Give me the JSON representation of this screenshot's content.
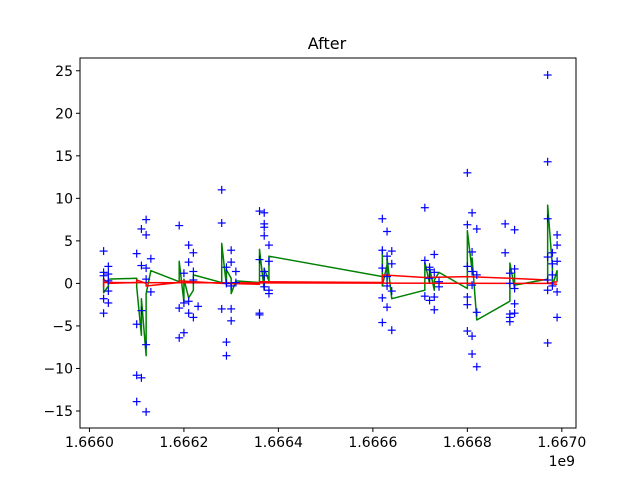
{
  "chart_data": {
    "type": "scatter",
    "title": "After",
    "xlabel": "",
    "ylabel": "",
    "x_offset_label": "1e9",
    "xlim": [
      1.66598,
      1.66703
    ],
    "ylim": [
      -17,
      26.5
    ],
    "xticks": [
      {
        "value": 1.666,
        "label": "1.6660"
      },
      {
        "value": 1.6662,
        "label": "1.6662"
      },
      {
        "value": 1.6664,
        "label": "1.6664"
      },
      {
        "value": 1.6666,
        "label": "1.6666"
      },
      {
        "value": 1.6668,
        "label": "1.6668"
      },
      {
        "value": 1.667,
        "label": "1.6670"
      }
    ],
    "yticks": [
      {
        "value": -15,
        "label": "−15"
      },
      {
        "value": -10,
        "label": "−10"
      },
      {
        "value": -5,
        "label": "−5"
      },
      {
        "value": 0,
        "label": "0"
      },
      {
        "value": 5,
        "label": "5"
      },
      {
        "value": 10,
        "label": "10"
      },
      {
        "value": 15,
        "label": "15"
      },
      {
        "value": 20,
        "label": "20"
      },
      {
        "value": 25,
        "label": "25"
      }
    ],
    "grid": false,
    "legend": "none",
    "series": [
      {
        "type": "scatter",
        "marker": "+",
        "color": "#0000ff",
        "points": [
          [
            1.66603,
            3.8
          ],
          [
            1.66603,
            1.3
          ],
          [
            1.66603,
            0.9
          ],
          [
            1.66603,
            -3.5
          ],
          [
            1.66603,
            -1.8
          ],
          [
            1.66604,
            2.0
          ],
          [
            1.66604,
            -2.3
          ],
          [
            1.66604,
            1.1
          ],
          [
            1.66604,
            0.3
          ],
          [
            1.66604,
            -0.9
          ],
          [
            1.6661,
            -10.8
          ],
          [
            1.6661,
            -13.9
          ],
          [
            1.6661,
            3.5
          ],
          [
            1.6661,
            -4.8
          ],
          [
            1.66611,
            6.4
          ],
          [
            1.66611,
            -11.1
          ],
          [
            1.66611,
            2.1
          ],
          [
            1.66611,
            -3.2
          ],
          [
            1.66612,
            7.5
          ],
          [
            1.66612,
            5.7
          ],
          [
            1.66612,
            -15.1
          ],
          [
            1.66612,
            1.8
          ],
          [
            1.66612,
            -7.2
          ],
          [
            1.66613,
            2.9
          ],
          [
            1.66613,
            -1.0
          ],
          [
            1.66612,
            0.5
          ],
          [
            1.66619,
            6.8
          ],
          [
            1.66619,
            -6.4
          ],
          [
            1.66619,
            -2.9
          ],
          [
            1.6662,
            -2.3
          ],
          [
            1.6662,
            1.2
          ],
          [
            1.6662,
            -5.8
          ],
          [
            1.66621,
            4.5
          ],
          [
            1.66621,
            -3.5
          ],
          [
            1.66621,
            2.5
          ],
          [
            1.66621,
            -2.1
          ],
          [
            1.66622,
            3.6
          ],
          [
            1.66622,
            -4.0
          ],
          [
            1.66622,
            0.4
          ],
          [
            1.66622,
            1.4
          ],
          [
            1.66623,
            -2.7
          ],
          [
            1.66628,
            11.0
          ],
          [
            1.66628,
            7.1
          ],
          [
            1.66628,
            -3.0
          ],
          [
            1.66629,
            -6.9
          ],
          [
            1.66629,
            -8.5
          ],
          [
            1.66629,
            1.9
          ],
          [
            1.66629,
            0.0
          ],
          [
            1.6663,
            3.9
          ],
          [
            1.6663,
            -4.4
          ],
          [
            1.6663,
            2.5
          ],
          [
            1.6663,
            -3.0
          ],
          [
            1.6663,
            -0.3
          ],
          [
            1.66631,
            1.4
          ],
          [
            1.66631,
            0.1
          ],
          [
            1.66636,
            8.5
          ],
          [
            1.66636,
            2.8
          ],
          [
            1.66636,
            -3.5
          ],
          [
            1.66636,
            -3.7
          ],
          [
            1.66637,
            8.3
          ],
          [
            1.66637,
            7.0
          ],
          [
            1.66637,
            5.6
          ],
          [
            1.66637,
            6.6
          ],
          [
            1.66637,
            1.4
          ],
          [
            1.66637,
            -0.4
          ],
          [
            1.66637,
            0.9
          ],
          [
            1.66638,
            4.5
          ],
          [
            1.66638,
            2.6
          ],
          [
            1.66638,
            -0.8
          ],
          [
            1.66638,
            -1.2
          ],
          [
            1.66662,
            7.6
          ],
          [
            1.66662,
            3.9
          ],
          [
            1.66662,
            -1.7
          ],
          [
            1.66662,
            -4.6
          ],
          [
            1.66662,
            1.8
          ],
          [
            1.66663,
            6.1
          ],
          [
            1.66663,
            3.2
          ],
          [
            1.66663,
            -0.3
          ],
          [
            1.66663,
            -2.8
          ],
          [
            1.66663,
            0.8
          ],
          [
            1.66664,
            2.3
          ],
          [
            1.66664,
            -5.5
          ],
          [
            1.66664,
            3.8
          ],
          [
            1.66664,
            -0.9
          ],
          [
            1.66671,
            8.9
          ],
          [
            1.66671,
            2.7
          ],
          [
            1.66671,
            -1.5
          ],
          [
            1.66672,
            1.6
          ],
          [
            1.66672,
            -2.0
          ],
          [
            1.66672,
            1.9
          ],
          [
            1.66672,
            0.6
          ],
          [
            1.66673,
            -3.1
          ],
          [
            1.66673,
            3.4
          ],
          [
            1.66673,
            -1.6
          ],
          [
            1.66673,
            1.3
          ],
          [
            1.66674,
            0.2
          ],
          [
            1.66674,
            -0.4
          ],
          [
            1.6668,
            13.0
          ],
          [
            1.6668,
            6.9
          ],
          [
            1.6668,
            -5.6
          ],
          [
            1.6668,
            -1.6
          ],
          [
            1.6668,
            -2.5
          ],
          [
            1.6668,
            2.0
          ],
          [
            1.66681,
            -8.3
          ],
          [
            1.66681,
            -6.2
          ],
          [
            1.66681,
            8.3
          ],
          [
            1.66681,
            3.7
          ],
          [
            1.66681,
            1.4
          ],
          [
            1.66681,
            -0.2
          ],
          [
            1.66682,
            -9.8
          ],
          [
            1.66682,
            -3.4
          ],
          [
            1.66682,
            6.4
          ],
          [
            1.66682,
            1.0
          ],
          [
            1.66688,
            7.0
          ],
          [
            1.66688,
            3.6
          ],
          [
            1.66689,
            -3.6
          ],
          [
            1.66689,
            -4.0
          ],
          [
            1.66689,
            -4.5
          ],
          [
            1.66689,
            1.2
          ],
          [
            1.66689,
            0.0
          ],
          [
            1.6669,
            6.3
          ],
          [
            1.6669,
            -3.5
          ],
          [
            1.6669,
            -2.4
          ],
          [
            1.6669,
            1.7
          ],
          [
            1.6669,
            -0.6
          ],
          [
            1.66697,
            24.5
          ],
          [
            1.66697,
            14.3
          ],
          [
            1.66697,
            7.6
          ],
          [
            1.66697,
            3.1
          ],
          [
            1.66697,
            0.4
          ],
          [
            1.66697,
            -0.8
          ],
          [
            1.66697,
            -7.0
          ],
          [
            1.66698,
            2.3
          ],
          [
            1.66698,
            3.6
          ],
          [
            1.66698,
            -0.3
          ],
          [
            1.66698,
            1.0
          ],
          [
            1.66699,
            5.7
          ],
          [
            1.66699,
            2.6
          ],
          [
            1.66699,
            -4.0
          ],
          [
            1.66699,
            -1.0
          ],
          [
            1.66699,
            4.5
          ]
        ]
      },
      {
        "type": "line",
        "color": "#008000",
        "points": [
          [
            1.66603,
            0.7
          ],
          [
            1.66603,
            -1.1
          ],
          [
            1.66604,
            -0.3
          ],
          [
            1.66604,
            0.2
          ],
          [
            1.66604,
            -0.5
          ],
          [
            1.66604,
            0.5
          ],
          [
            1.6661,
            0.6
          ],
          [
            1.6661,
            -0.4
          ],
          [
            1.66611,
            -6.1
          ],
          [
            1.66611,
            -1.8
          ],
          [
            1.66612,
            -8.5
          ],
          [
            1.66612,
            -2.0
          ],
          [
            1.66612,
            -5.0
          ],
          [
            1.66612,
            -1.2
          ],
          [
            1.66613,
            1.5
          ],
          [
            1.66619,
            0.2
          ],
          [
            1.66619,
            2.6
          ],
          [
            1.6662,
            -2.2
          ],
          [
            1.6662,
            0.5
          ],
          [
            1.66621,
            -1.7
          ],
          [
            1.66622,
            -0.8
          ],
          [
            1.66622,
            1.0
          ],
          [
            1.66628,
            0.1
          ],
          [
            1.66628,
            4.7
          ],
          [
            1.66629,
            -0.3
          ],
          [
            1.66629,
            1.6
          ],
          [
            1.6663,
            0.6
          ],
          [
            1.6663,
            -1.2
          ],
          [
            1.66631,
            0.3
          ],
          [
            1.66636,
            0.1
          ],
          [
            1.66636,
            2.5
          ],
          [
            1.66636,
            4.0
          ],
          [
            1.66637,
            -0.8
          ],
          [
            1.66637,
            0.8
          ],
          [
            1.66637,
            1.7
          ],
          [
            1.66638,
            0.3
          ],
          [
            1.66638,
            3.2
          ],
          [
            1.66662,
            0.8
          ],
          [
            1.66662,
            4.0
          ],
          [
            1.66662,
            -0.3
          ],
          [
            1.66663,
            2.2
          ],
          [
            1.66663,
            0.2
          ],
          [
            1.66663,
            3.0
          ],
          [
            1.66664,
            -1.8
          ],
          [
            1.66671,
            -0.8
          ],
          [
            1.66671,
            2.5
          ],
          [
            1.66672,
            0.0
          ],
          [
            1.66672,
            1.8
          ],
          [
            1.66673,
            -0.8
          ],
          [
            1.66673,
            0.4
          ],
          [
            1.66674,
            1.3
          ],
          [
            1.6668,
            -0.6
          ],
          [
            1.6668,
            1.0
          ],
          [
            1.6668,
            6.2
          ],
          [
            1.66681,
            1.5
          ],
          [
            1.66681,
            3.0
          ],
          [
            1.66682,
            -4.3
          ],
          [
            1.66689,
            -2.1
          ],
          [
            1.66689,
            0.4
          ],
          [
            1.66689,
            2.4
          ],
          [
            1.6669,
            -0.6
          ],
          [
            1.6669,
            1.3
          ],
          [
            1.6669,
            -0.2
          ],
          [
            1.66697,
            0.5
          ],
          [
            1.66697,
            3.0
          ],
          [
            1.66697,
            9.2
          ],
          [
            1.66698,
            2.0
          ],
          [
            1.66698,
            -0.3
          ],
          [
            1.66699,
            1.5
          ],
          [
            1.66699,
            0.2
          ]
        ]
      },
      {
        "type": "line",
        "color": "#ff0000",
        "points": [
          [
            1.66603,
            0.3
          ],
          [
            1.66603,
            -0.4
          ],
          [
            1.66603,
            0.5
          ],
          [
            1.66604,
            0.0
          ],
          [
            1.6661,
            0.1
          ],
          [
            1.6661,
            0.4
          ],
          [
            1.66612,
            0.0
          ],
          [
            1.66612,
            -0.3
          ],
          [
            1.66619,
            0.1
          ],
          [
            1.66619,
            0.3
          ],
          [
            1.66628,
            0.0
          ],
          [
            1.66636,
            -0.1
          ],
          [
            1.66636,
            0.2
          ],
          [
            1.66662,
            0.1
          ],
          [
            1.66662,
            1.0
          ],
          [
            1.66671,
            0.7
          ],
          [
            1.6668,
            0.8
          ],
          [
            1.66689,
            0.6
          ],
          [
            1.66697,
            0.4
          ],
          [
            1.66697,
            0.0
          ],
          [
            1.66699,
            0.2
          ]
        ]
      },
      {
        "type": "line",
        "color": "#ff0000",
        "points": [
          [
            1.66603,
            0.1
          ],
          [
            1.66697,
            0.0
          ],
          [
            1.66699,
            -0.1
          ]
        ]
      }
    ]
  }
}
